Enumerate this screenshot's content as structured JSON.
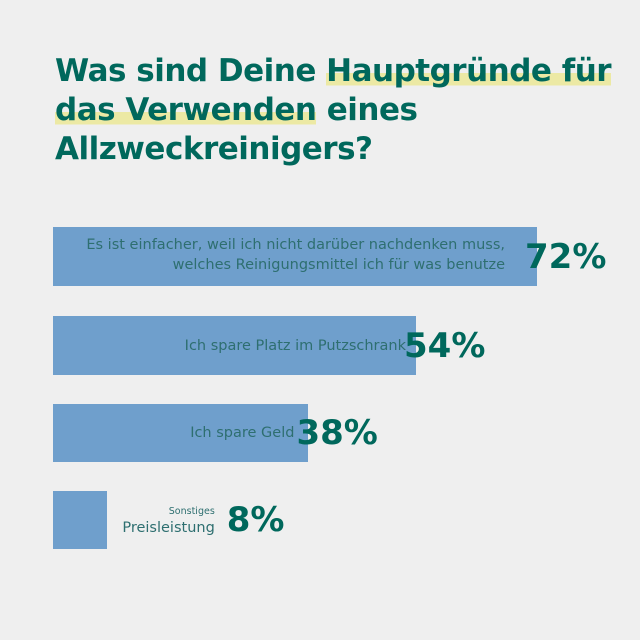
{
  "chart_data": {
    "type": "bar",
    "orientation": "horizontal",
    "title": "Was sind Deine Hauptgründe für das Verwenden eines Allzweckreinigers?",
    "title_parts": {
      "pre": "Was sind Deine ",
      "highlight": "Hauptgründe für das Verwenden",
      "post": " eines Allzweckreinigers?"
    },
    "categories": [
      "Es ist einfacher, weil ich nicht darüber nachdenken muss, welches Reinigungsmittel ich für was benutze",
      "Ich spare Platz im Putzschrank",
      "Ich spare Geld",
      "Preisleistung"
    ],
    "category_note": {
      "3": "Sonstiges"
    },
    "values": [
      72,
      54,
      38,
      8
    ],
    "value_labels": [
      "72%",
      "54%",
      "38%",
      "8%"
    ],
    "unit": "%",
    "xlim": [
      0,
      100
    ],
    "grid": false,
    "colors": {
      "bar": "#6f9fcc",
      "text": "#00685c",
      "highlight": "#ece9a4",
      "background": "#efefef"
    }
  }
}
